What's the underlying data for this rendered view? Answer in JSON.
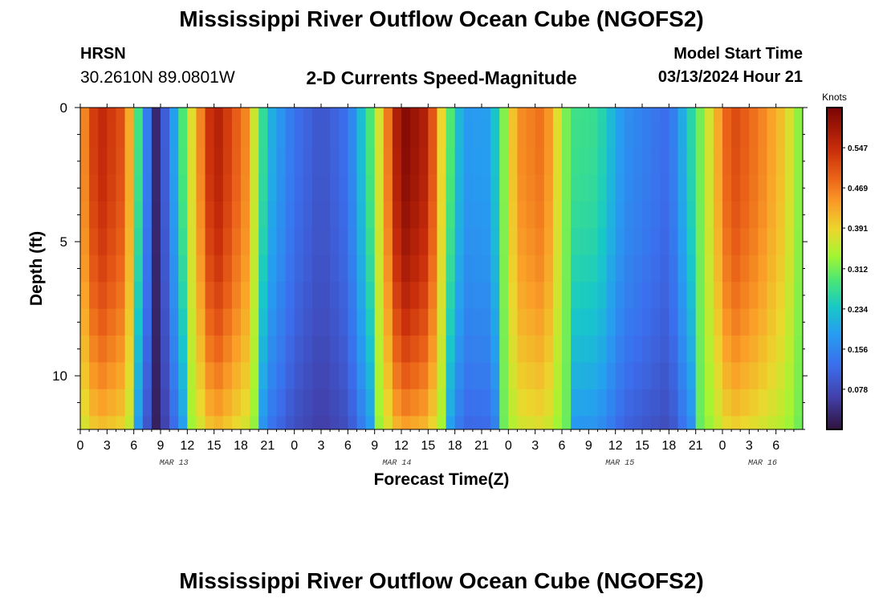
{
  "page": {
    "title": "Mississippi River Outflow Ocean Cube (NGOFS2)",
    "title_repeat": "Mississippi River Outflow Ocean Cube (NGOFS2)",
    "station_code": "HRSN",
    "station_coords": "30.2610N  89.0801W",
    "subtitle": "2-D Currents Speed-Magnitude",
    "start_time_label": "Model Start Time",
    "start_time_value": "03/13/2024 Hour 21"
  },
  "chart_data": {
    "type": "heatmap",
    "xlabel": "Forecast Time(Z)",
    "ylabel": "Depth (ft)",
    "colorbar_label": "Knots",
    "colorbar_ticks": [
      0.078,
      0.156,
      0.234,
      0.312,
      0.391,
      0.469,
      0.547
    ],
    "colorbar_range": [
      0.0,
      0.625
    ],
    "colormap": "turbo",
    "y_range": [
      0,
      12
    ],
    "y_inverted": true,
    "y_ticks": [
      0,
      5,
      10
    ],
    "x_range_hours": [
      0,
      81
    ],
    "x_tick_labels": [
      "0",
      "3",
      "6",
      "9",
      "12",
      "15",
      "18",
      "21",
      "0",
      "3",
      "6",
      "9",
      "12",
      "15",
      "18",
      "21",
      "0",
      "3",
      "6",
      "9",
      "12",
      "15",
      "18",
      "21",
      "0",
      "3",
      "6"
    ],
    "date_labels": [
      {
        "label": "MAR 13",
        "hour": 10.5
      },
      {
        "label": "MAR 14",
        "hour": 35.5
      },
      {
        "label": "MAR 15",
        "hour": 60.5
      },
      {
        "label": "MAR 16",
        "hour": 76.5
      }
    ],
    "depth_levels_ft": [
      0,
      1,
      2,
      3,
      4,
      5,
      6,
      7,
      8,
      9,
      10,
      11,
      12
    ],
    "time_profile": [
      {
        "hour": 0,
        "value": 0.43
      },
      {
        "hour": 2,
        "value": 0.56
      },
      {
        "hour": 5,
        "value": 0.5
      },
      {
        "hour": 6,
        "value": 0.36
      },
      {
        "hour": 7,
        "value": 0.2
      },
      {
        "hour": 8.5,
        "value": 0.03
      },
      {
        "hour": 10,
        "value": 0.14
      },
      {
        "hour": 12,
        "value": 0.34
      },
      {
        "hour": 15,
        "value": 0.58
      },
      {
        "hour": 18.5,
        "value": 0.46
      },
      {
        "hour": 21,
        "value": 0.22
      },
      {
        "hour": 24,
        "value": 0.13
      },
      {
        "hour": 27,
        "value": 0.09
      },
      {
        "hour": 30,
        "value": 0.13
      },
      {
        "hour": 33,
        "value": 0.32
      },
      {
        "hour": 36,
        "value": 0.62
      },
      {
        "hour": 39,
        "value": 0.56
      },
      {
        "hour": 41,
        "value": 0.33
      },
      {
        "hour": 43,
        "value": 0.18
      },
      {
        "hour": 46,
        "value": 0.19
      },
      {
        "hour": 49,
        "value": 0.45
      },
      {
        "hour": 52,
        "value": 0.48
      },
      {
        "hour": 55,
        "value": 0.28
      },
      {
        "hour": 58,
        "value": 0.27
      },
      {
        "hour": 61,
        "value": 0.17
      },
      {
        "hour": 66,
        "value": 0.12
      },
      {
        "hour": 70,
        "value": 0.34
      },
      {
        "hour": 73,
        "value": 0.52
      },
      {
        "hour": 76,
        "value": 0.47
      },
      {
        "hour": 79,
        "value": 0.4
      },
      {
        "hour": 81,
        "value": 0.3
      }
    ]
  }
}
